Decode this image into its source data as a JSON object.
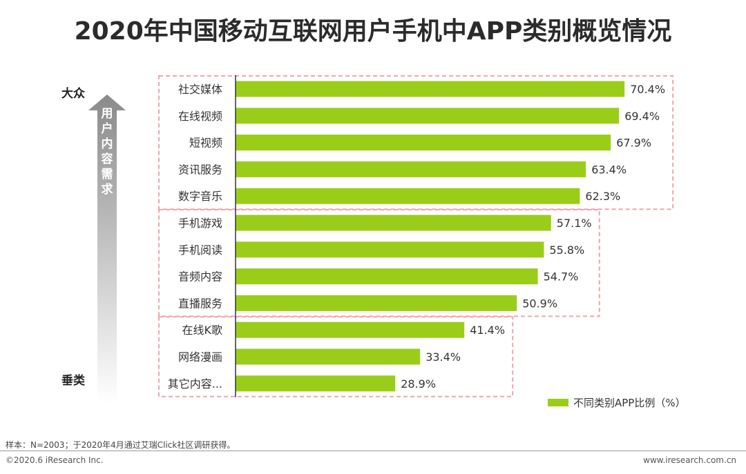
{
  "page": {
    "title": "2020年中国移动互联网用户手机中APP类别概览情况",
    "note": "样本：N=2003；于2020年4月通过艾瑞Click社区调研获得。",
    "copyright": "©2020.6 iResearch Inc.",
    "website": "www.iresearch.com.cn"
  },
  "side": {
    "top_label": "大众",
    "bottom_label": "垂类",
    "arrow_text": "用户内容需求"
  },
  "colors": {
    "bar": "#9acd19",
    "group_border": "#f0a5ad",
    "axis": "#333333"
  },
  "chart_data": {
    "type": "bar",
    "orientation": "horizontal",
    "categories": [
      "社交媒体",
      "在线视频",
      "短视频",
      "资讯服务",
      "数字音乐",
      "手机游戏",
      "手机阅读",
      "音频内容",
      "直播服务",
      "在线K歌",
      "网络漫画",
      "其它内容..."
    ],
    "series": [
      {
        "name": "不同类别APP比例（%）",
        "values": [
          70.4,
          69.4,
          67.9,
          63.4,
          62.3,
          57.1,
          55.8,
          54.7,
          50.9,
          41.4,
          33.4,
          28.9
        ]
      }
    ],
    "value_labels": [
      "70.4%",
      "69.4%",
      "67.9%",
      "63.4%",
      "62.3%",
      "57.1%",
      "55.8%",
      "54.7%",
      "50.9%",
      "41.4%",
      "33.4%",
      "28.9%"
    ],
    "groups": [
      [
        0,
        4
      ],
      [
        5,
        8
      ],
      [
        9,
        11
      ]
    ],
    "legend": "bottom-right",
    "xlim": [
      0,
      75
    ]
  }
}
